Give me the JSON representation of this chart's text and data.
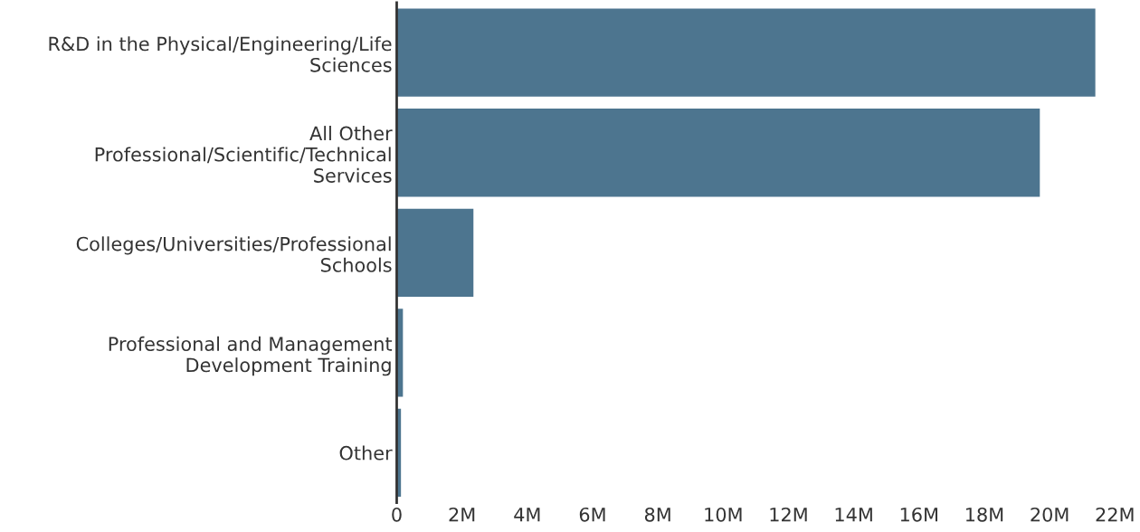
{
  "chart_data": {
    "type": "bar",
    "orientation": "horizontal",
    "categories": [
      "R&D in the Physical/Engineering/Life\nSciences",
      "All Other\nProfessional/Scientific/Technical\nServices",
      "Colleges/Universities/Professional\nSchools",
      "Professional and Management\nDevelopment Training",
      "Other"
    ],
    "values": [
      21400000,
      19700000,
      2350000,
      190000,
      130000
    ],
    "color": "#4d758f",
    "xlim": [
      0,
      22000000
    ],
    "xticks": [
      0,
      {
        "value": 2000000,
        "label": "2M"
      },
      {
        "value": 4000000,
        "label": "4M"
      },
      {
        "value": 6000000,
        "label": "6M"
      },
      {
        "value": 8000000,
        "label": "8M"
      },
      {
        "value": 10000000,
        "label": "10M"
      },
      {
        "value": 12000000,
        "label": "12M"
      },
      {
        "value": 14000000,
        "label": "14M"
      },
      {
        "value": 16000000,
        "label": "16M"
      },
      {
        "value": 18000000,
        "label": "18M"
      },
      {
        "value": 20000000,
        "label": "20M"
      },
      {
        "value": 22000000,
        "label": "22M"
      }
    ],
    "grid": false
  }
}
